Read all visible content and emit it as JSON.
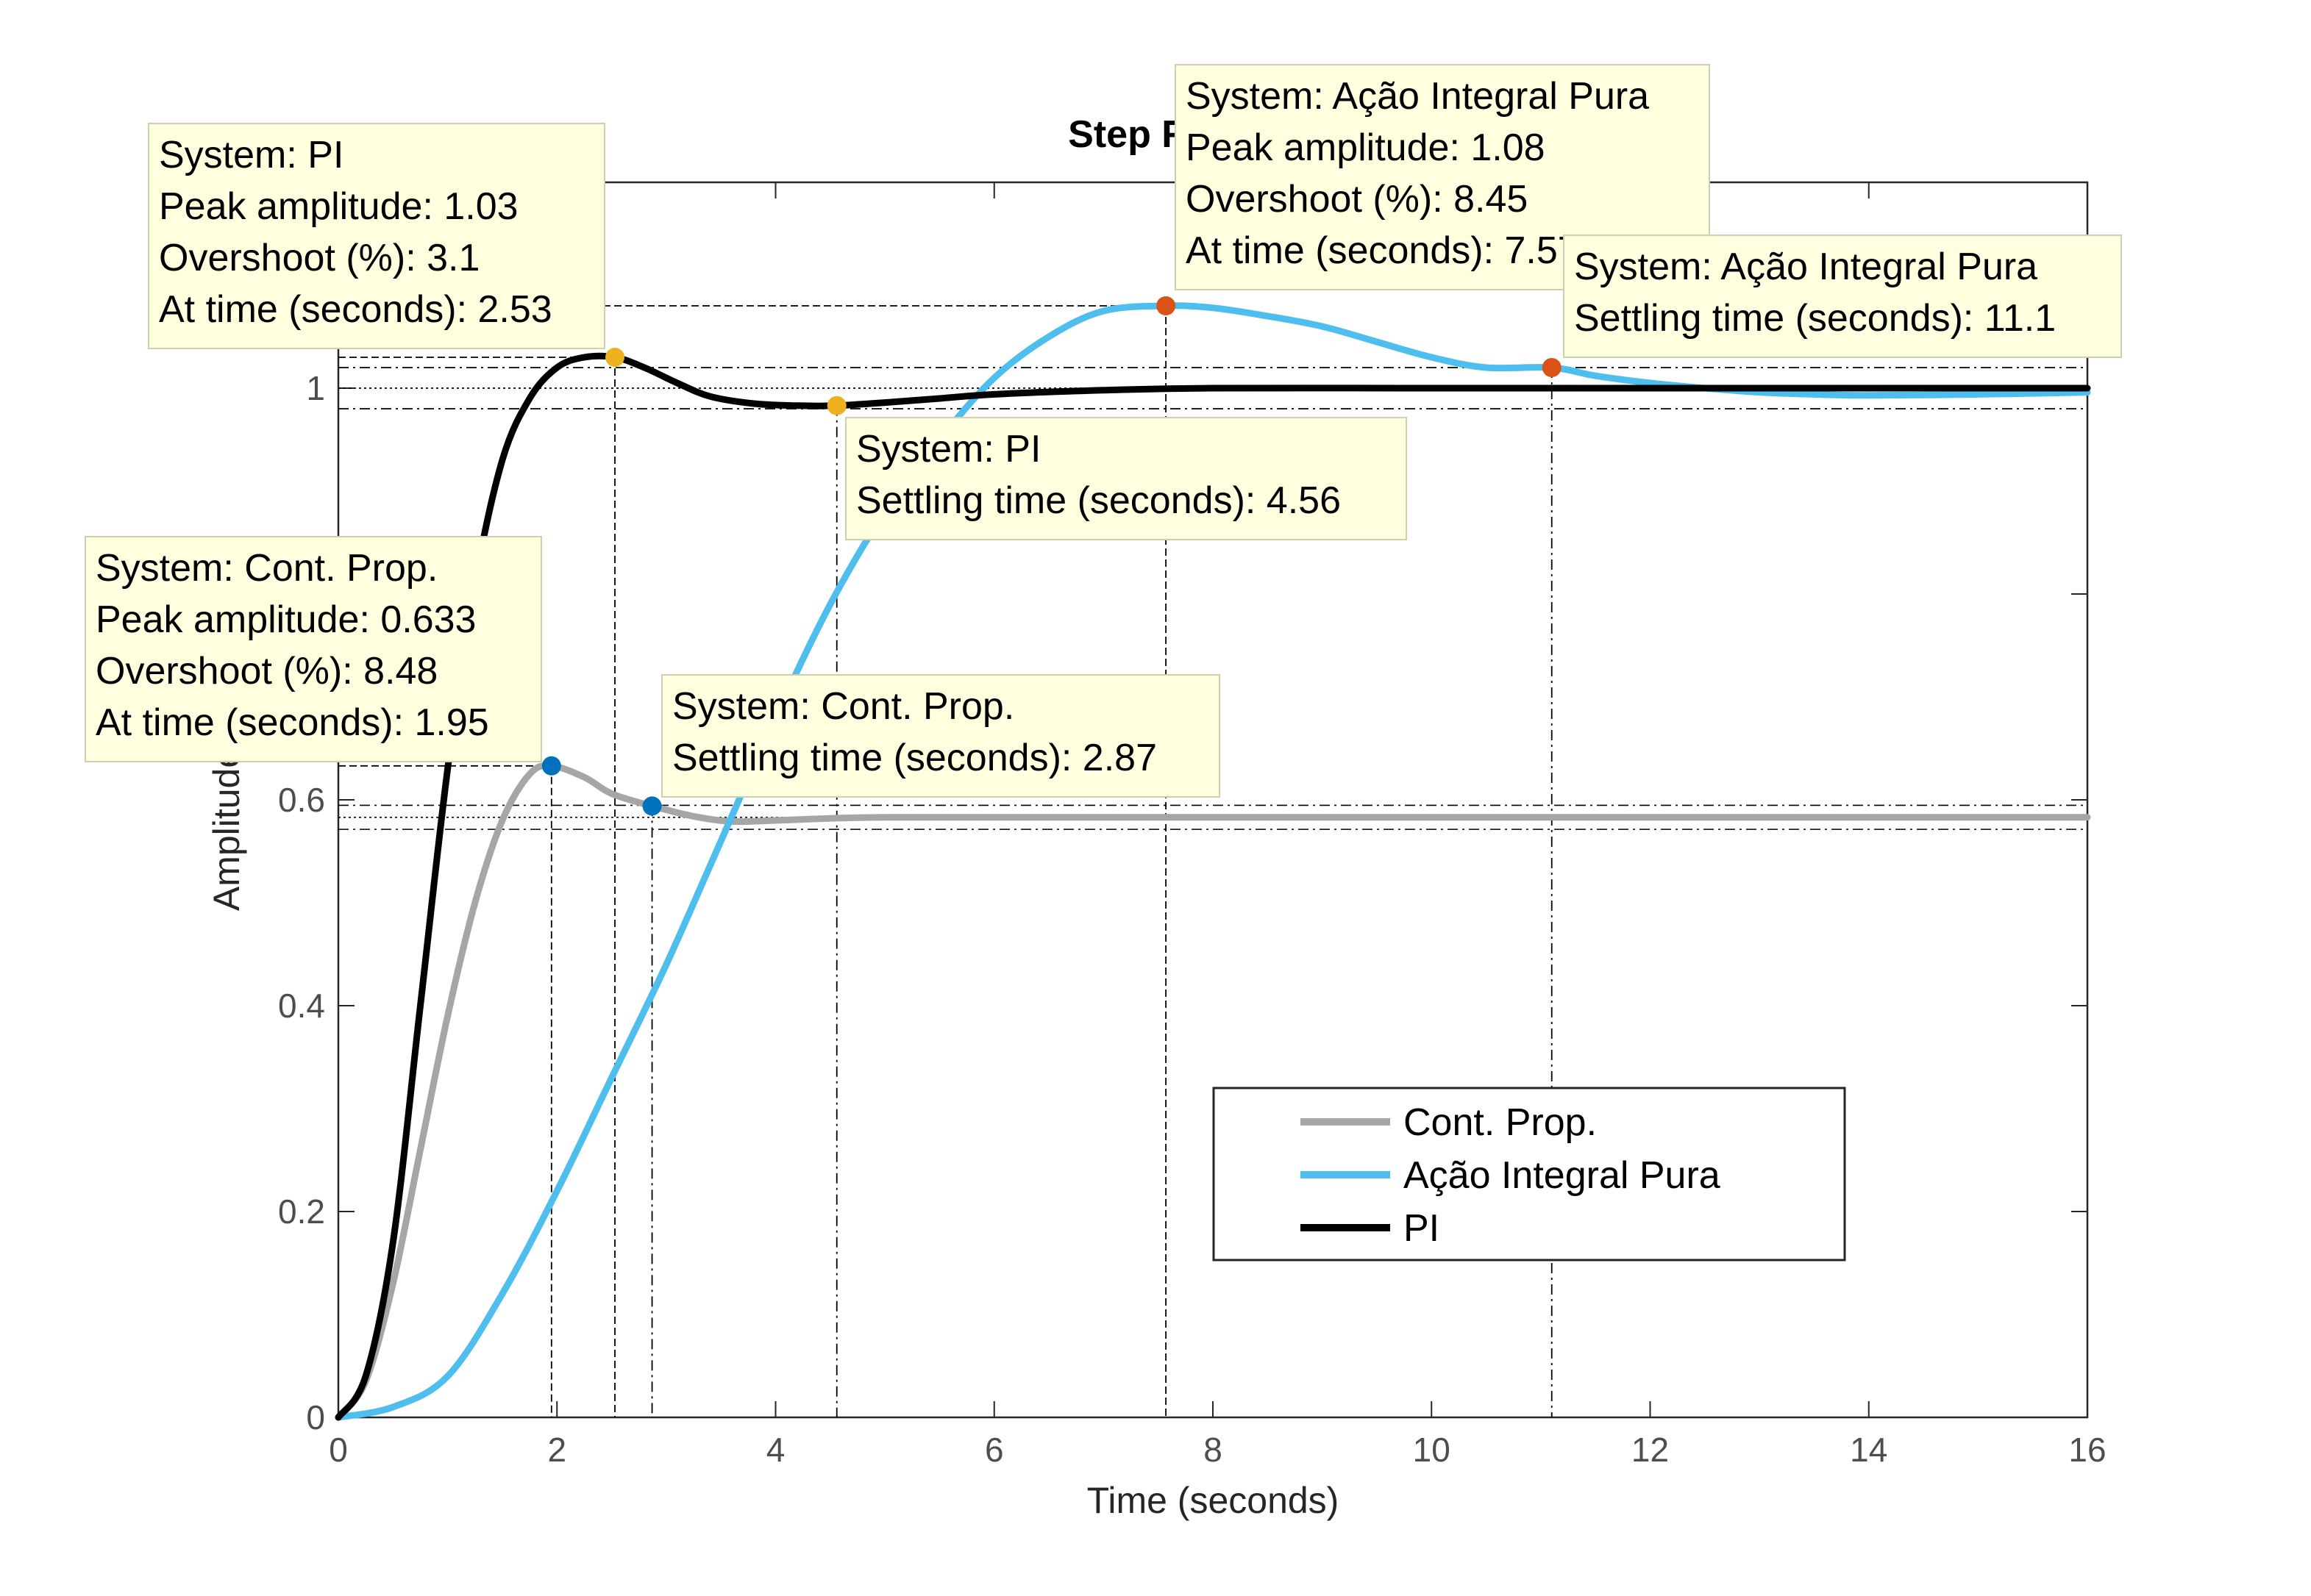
{
  "chart_data": {
    "type": "line",
    "title": "Step Response",
    "xlabel": "Time (seconds)",
    "ylabel": "Amplitude",
    "xlim": [
      0,
      16
    ],
    "ylim": [
      0,
      1.2
    ],
    "xticks": [
      0,
      2,
      4,
      6,
      8,
      10,
      12,
      14,
      16
    ],
    "yticks": [
      0,
      0.2,
      0.4,
      0.6,
      1
    ],
    "grid": false,
    "legend_position": "lower-right",
    "series": [
      {
        "name": "Cont. Prop.",
        "color": "#a6a6a6",
        "final_value": 0.583,
        "x": [
          0,
          0.25,
          0.5,
          0.75,
          1.0,
          1.25,
          1.5,
          1.75,
          1.95,
          2.25,
          2.5,
          2.87,
          3.25,
          3.6,
          4.0,
          4.5,
          5,
          6,
          8,
          10,
          12,
          14,
          16
        ],
        "y": [
          0,
          0.035,
          0.13,
          0.26,
          0.39,
          0.5,
          0.58,
          0.625,
          0.633,
          0.622,
          0.606,
          0.594,
          0.584,
          0.579,
          0.58,
          0.582,
          0.583,
          0.583,
          0.583,
          0.583,
          0.583,
          0.583,
          0.583
        ]
      },
      {
        "name": "Ação Integral Pura",
        "color": "#4dbeee",
        "final_value": 1.0,
        "x": [
          0,
          0.5,
          1.0,
          1.5,
          2.0,
          2.5,
          3.0,
          3.5,
          4.0,
          4.5,
          5.0,
          5.5,
          6.0,
          6.5,
          7.0,
          7.57,
          8.0,
          8.5,
          9.0,
          9.5,
          10.0,
          10.5,
          11.1,
          11.5,
          12.0,
          12.5,
          13.0,
          13.5,
          14.0,
          15.0,
          16.0
        ],
        "y": [
          0,
          0.01,
          0.04,
          0.12,
          0.22,
          0.33,
          0.44,
          0.56,
          0.68,
          0.79,
          0.88,
          0.95,
          1.01,
          1.05,
          1.075,
          1.08,
          1.078,
          1.07,
          1.06,
          1.045,
          1.03,
          1.02,
          1.02,
          1.012,
          1.005,
          1.0,
          0.996,
          0.994,
          0.993,
          0.994,
          0.996
        ]
      },
      {
        "name": "PI",
        "color": "#000000",
        "final_value": 1.0,
        "x": [
          0,
          0.25,
          0.5,
          0.75,
          1.0,
          1.25,
          1.5,
          1.75,
          2.0,
          2.25,
          2.53,
          2.8,
          3.1,
          3.4,
          3.8,
          4.2,
          4.56,
          5.0,
          5.5,
          6.0,
          7.0,
          8.0,
          10.0,
          12.0,
          14.0,
          16.0
        ],
        "y": [
          0,
          0.04,
          0.17,
          0.4,
          0.63,
          0.81,
          0.93,
          0.99,
          1.02,
          1.03,
          1.03,
          1.02,
          1.005,
          0.992,
          0.985,
          0.983,
          0.983,
          0.986,
          0.99,
          0.994,
          0.998,
          1.0,
          1.0,
          1.0,
          1.0,
          1.0
        ]
      }
    ],
    "datatips": [
      {
        "series": "Cont. Prop.",
        "kind": "peak",
        "x": 1.95,
        "y": 0.633,
        "color": "#0072bd",
        "lines": [
          "System: Cont. Prop.",
          "Peak amplitude: 0.633",
          "Overshoot (%): 8.48",
          "At time (seconds): 1.95"
        ]
      },
      {
        "series": "Cont. Prop.",
        "kind": "settling",
        "x": 2.87,
        "y": 0.594,
        "color": "#0072bd",
        "lines": [
          "System: Cont. Prop.",
          "Settling time (seconds): 2.87"
        ]
      },
      {
        "series": "PI",
        "kind": "peak",
        "x": 2.53,
        "y": 1.03,
        "color": "#edb120",
        "lines": [
          "System: PI",
          "Peak amplitude: 1.03",
          "Overshoot (%): 3.1",
          "At time (seconds): 2.53"
        ]
      },
      {
        "series": "PI",
        "kind": "settling",
        "x": 4.56,
        "y": 0.983,
        "color": "#edb120",
        "lines": [
          "System: PI",
          "Settling time (seconds): 4.56"
        ]
      },
      {
        "series": "Ação Integral Pura",
        "kind": "peak",
        "x": 7.57,
        "y": 1.08,
        "color": "#d95319",
        "lines": [
          "System: Ação Integral Pura",
          "Peak amplitude: 1.08",
          "Overshoot (%): 8.45",
          "At time (seconds): 7.57"
        ]
      },
      {
        "series": "Ação Integral Pura",
        "kind": "settling",
        "x": 11.1,
        "y": 1.02,
        "color": "#d95319",
        "lines": [
          "System: Ação Integral Pura",
          "Settling time (seconds): 11.1"
        ]
      }
    ]
  }
}
